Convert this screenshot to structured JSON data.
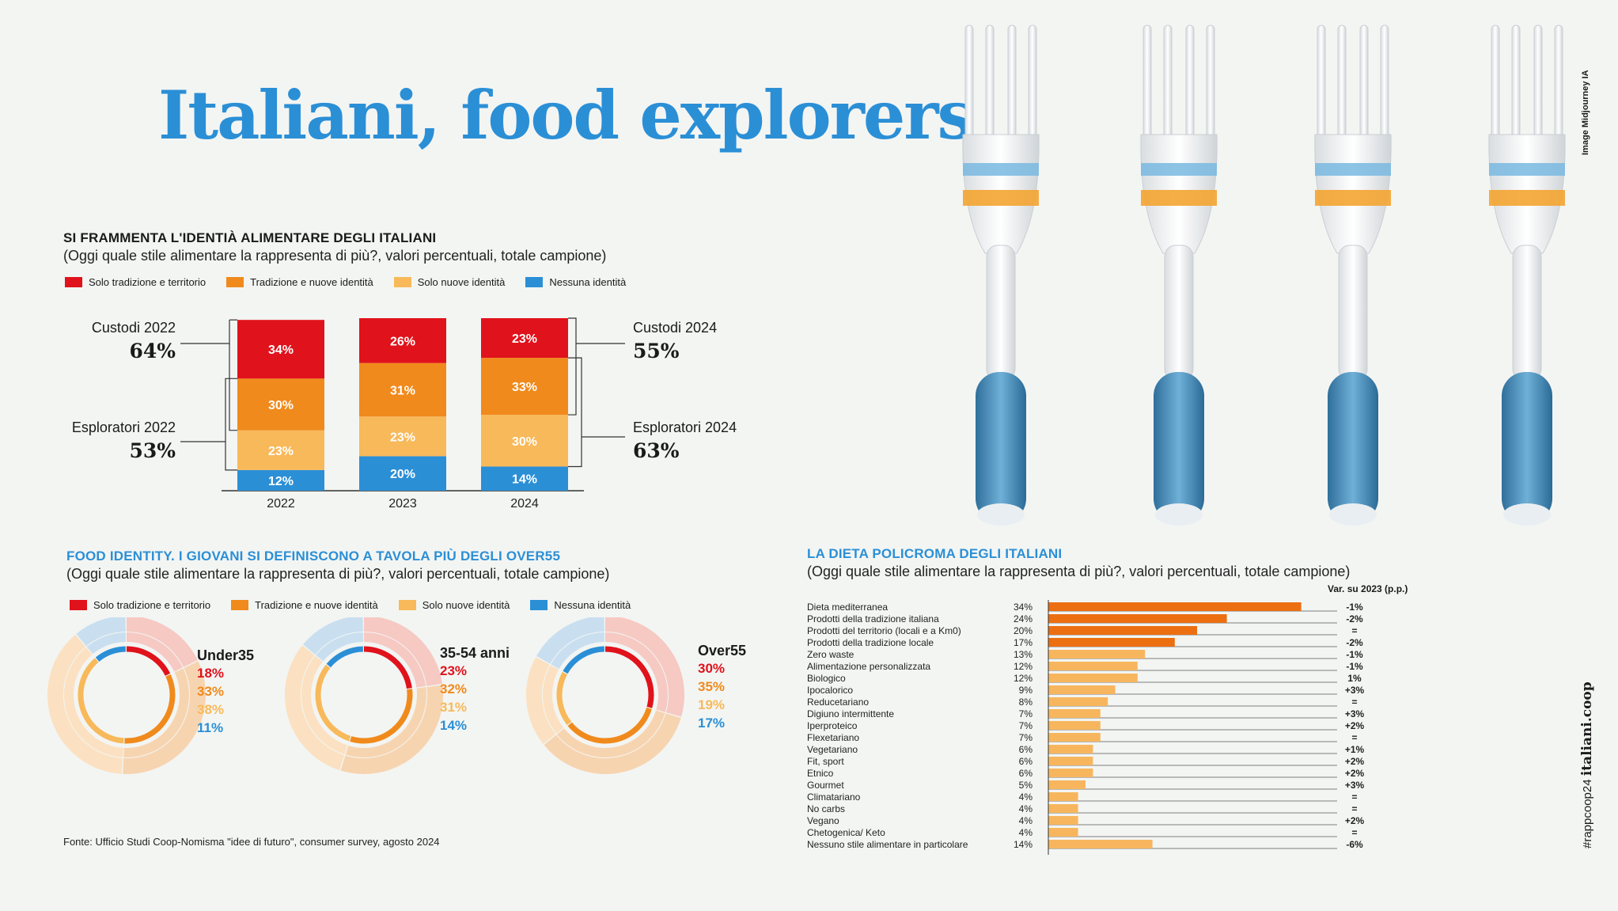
{
  "title": "Italiani, food explorers",
  "image_credit": "Image Midjourney IA",
  "side_credit": {
    "hashtag": "#rappcoop24",
    "site": "italiani.coop"
  },
  "source": "Fonte: Ufficio Studi Coop-Nomisma \"idee di futuro\", consumer survey, agosto 2024",
  "colors": {
    "red": "#e0121b",
    "orange": "#f08a1c",
    "light_orange": "#f8b95a",
    "blue": "#2b8fd6",
    "bar_dark": "#ec6f12",
    "bar_light": "#f7b65e"
  },
  "section1": {
    "title": "SI FRAMMENTA L'IDENTIÀ ALIMENTARE DEGLI ITALIANI",
    "subtitle": "(Oggi quale stile alimentare la rappresenta di più?, valori percentuali, totale campione)",
    "legend": [
      "Solo tradizione e territorio",
      "Tradizione e nuove identità",
      "Solo nuove identità",
      "Nessuna identità"
    ],
    "custodi_2022": {
      "label": "Custodi 2022",
      "value": "64%"
    },
    "esploratori_2022": {
      "label": "Esploratori 2022",
      "value": "53%"
    },
    "custodi_2024": {
      "label": "Custodi 2024",
      "value": "55%"
    },
    "esploratori_2024": {
      "label": "Esploratori 2024",
      "value": "63%"
    }
  },
  "section2": {
    "title": "FOOD IDENTITY. I GIOVANI SI DEFINISCONO A TAVOLA PIÙ DEGLI OVER55",
    "subtitle": "(Oggi quale stile alimentare la rappresenta di più?, valori percentuali, totale campione)",
    "legend": [
      "Solo tradizione e territorio",
      "Tradizione e nuove identità",
      "Solo nuove identità",
      "Nessuna identità"
    ]
  },
  "section3": {
    "title": "LA DIETA POLICROMA DEGLI ITALIANI",
    "subtitle": "(Oggi quale stile alimentare la rappresenta di più?, valori percentuali, totale campione)",
    "var_header": "Var. su 2023 (p.p.)"
  },
  "chart_data": [
    {
      "type": "bar",
      "stacked": true,
      "title": "SI FRAMMENTA L'IDENTIÀ ALIMENTARE DEGLI ITALIANI",
      "categories": [
        "2022",
        "2023",
        "2024"
      ],
      "series": [
        {
          "name": "Solo tradizione e territorio",
          "values": [
            34,
            26,
            23
          ]
        },
        {
          "name": "Tradizione e nuove identità",
          "values": [
            30,
            31,
            33
          ]
        },
        {
          "name": "Solo nuove identità",
          "values": [
            23,
            23,
            30
          ]
        },
        {
          "name": "Nessuna identità",
          "values": [
            12,
            20,
            14
          ]
        }
      ]
    },
    {
      "type": "pie",
      "title": "FOOD IDENTITY. I GIOVANI SI DEFINISCONO A TAVOLA PIÙ DEGLI OVER55",
      "categories": [
        "Solo tradizione e territorio",
        "Tradizione e nuove identità",
        "Solo nuove identità",
        "Nessuna identità"
      ],
      "groups": [
        {
          "name": "Under35",
          "values": [
            18,
            33,
            38,
            11
          ]
        },
        {
          "name": "35-54 anni",
          "values": [
            23,
            32,
            31,
            14
          ]
        },
        {
          "name": "Over55",
          "values": [
            30,
            35,
            19,
            17
          ]
        }
      ]
    },
    {
      "type": "bar",
      "orientation": "horizontal",
      "title": "LA DIETA POLICROMA DEGLI ITALIANI",
      "categories": [
        "Dieta mediterranea",
        "Prodotti della tradizione italiana",
        "Prodotti del territorio (locali e a Km0)",
        "Prodotti della tradizione locale",
        "Zero waste",
        "Alimentazione personalizzata",
        "Biologico",
        "Ipocalorico",
        "Reducetariano",
        "Digiuno intermittente",
        "Iperproteico",
        "Flexetariano",
        "Vegetariano",
        "Fit, sport",
        "Etnico",
        "Gourmet",
        "Climatariano",
        "No carbs",
        "Vegano",
        "Chetogenica/ Keto",
        "Nessuno stile alimentare in particolare"
      ],
      "values": [
        34,
        24,
        20,
        17,
        13,
        12,
        12,
        9,
        8,
        7,
        7,
        7,
        6,
        6,
        6,
        5,
        4,
        4,
        4,
        4,
        14
      ],
      "variation": [
        "-1%",
        "-2%",
        "=",
        "-2%",
        "-1%",
        "-1%",
        "1%",
        "+3%",
        "=",
        "+3%",
        "+2%",
        "=",
        "+1%",
        "+2%",
        "+2%",
        "+3%",
        "=",
        "=",
        "+2%",
        "=",
        "-6%"
      ]
    }
  ]
}
